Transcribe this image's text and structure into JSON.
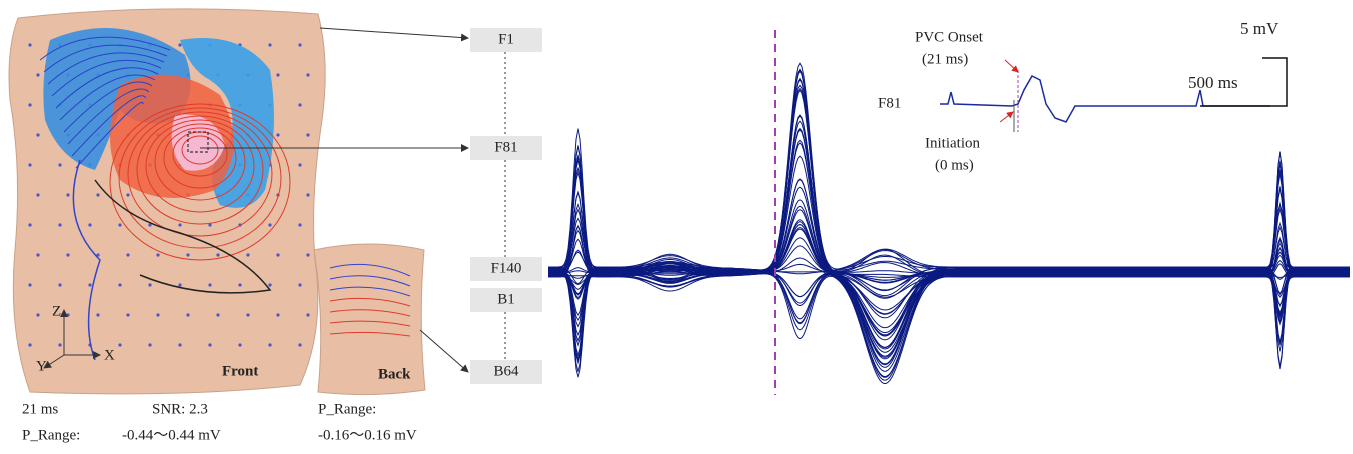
{
  "front_map": {
    "view": "Front",
    "time": "21 ms",
    "snr": "SNR: 2.3",
    "range_label": "P_Range:",
    "range": "-0.44～0.44 mV",
    "axes": {
      "z": "Z",
      "y": "Y",
      "x": "X"
    }
  },
  "back_map": {
    "view": "Back",
    "range_label": "P_Range:",
    "range": "-0.16～0.16 mV"
  },
  "leads": [
    "F1",
    "F81",
    "F140",
    "B1",
    "B64"
  ],
  "inset": {
    "lead": "F81",
    "onset": "PVC Onset",
    "onset_time": "(21 ms)",
    "initiation": "Initiation",
    "initiation_time": "(0 ms)",
    "scale_v": "5 mV",
    "scale_t": "500 ms"
  }
}
